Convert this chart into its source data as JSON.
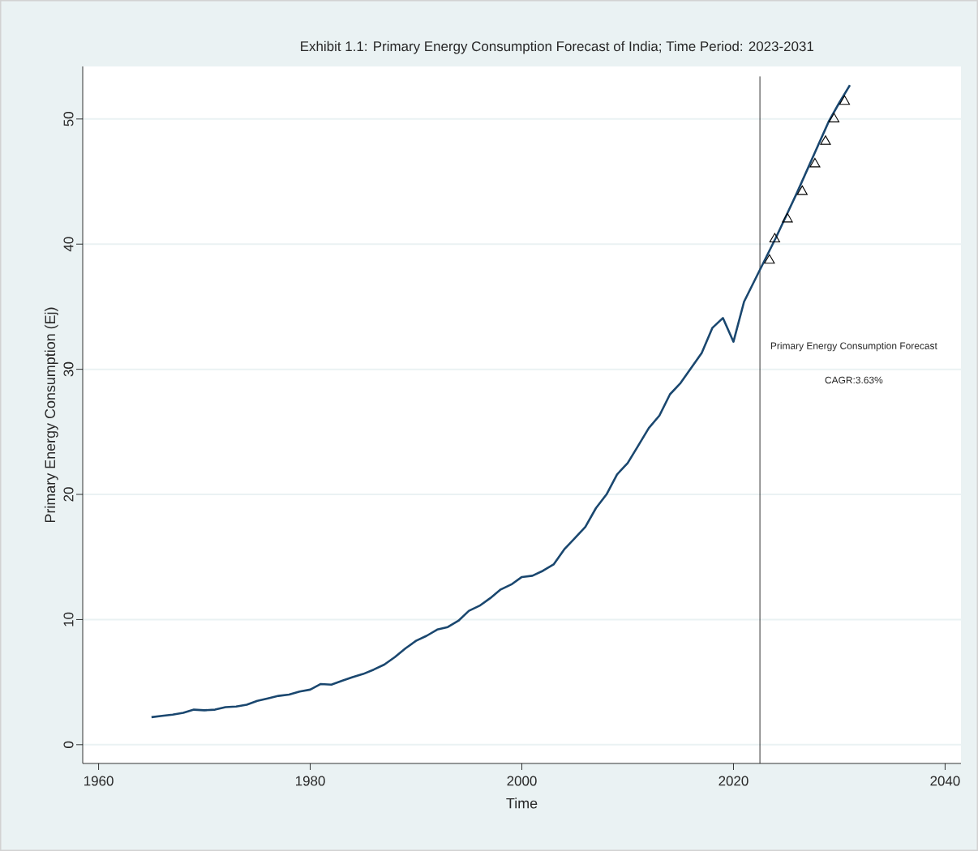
{
  "chart_data": {
    "type": "line",
    "title": "Exhibit 1.1: Primary Energy Consumption Forecast of India; Time Period: 2023-2031",
    "xlabel": "Time",
    "ylabel": "Primary Energy Consumption (Ej)",
    "xlim": [
      1958.5,
      2041.5
    ],
    "ylim": [
      -1.5,
      54.2
    ],
    "xticks": [
      1960,
      1980,
      2000,
      2020,
      2040
    ],
    "yticks": [
      0,
      10,
      20,
      30,
      40,
      50
    ],
    "grid": "y",
    "series": [
      {
        "color": "#1a476f",
        "marker": "none",
        "x": [
          1965,
          1966,
          1967,
          1968,
          1969,
          1970,
          1971,
          1972,
          1973,
          1974,
          1975,
          1976,
          1977,
          1978,
          1979,
          1980,
          1981,
          1982,
          1983,
          1984,
          1985,
          1986,
          1987,
          1988,
          1989,
          1990,
          1991,
          1992,
          1993,
          1994,
          1995,
          1996,
          1997,
          1998,
          1999,
          2000,
          2001,
          2002,
          2003,
          2004,
          2005,
          2006,
          2007,
          2008,
          2009,
          2010,
          2011,
          2012,
          2013,
          2014,
          2015,
          2016,
          2017,
          2018,
          2019,
          2020,
          2021,
          2022,
          2023,
          2024,
          2025,
          2026,
          2027,
          2028,
          2029,
          2030,
          2031
        ],
        "values": [
          2.2,
          2.3,
          2.4,
          2.55,
          2.8,
          2.75,
          2.8,
          3.0,
          3.05,
          3.2,
          3.5,
          3.7,
          3.9,
          4.0,
          4.25,
          4.4,
          4.85,
          4.8,
          5.1,
          5.4,
          5.65,
          6.0,
          6.4,
          7.0,
          7.7,
          8.3,
          8.7,
          9.2,
          9.4,
          9.9,
          10.7,
          11.1,
          11.7,
          12.4,
          12.8,
          13.4,
          13.5,
          13.9,
          14.4,
          15.6,
          16.5,
          17.4,
          18.9,
          20.0,
          21.6,
          22.5,
          23.9,
          25.3,
          26.3,
          28.0,
          28.9,
          30.1,
          31.3,
          33.3,
          34.1,
          32.2,
          35.4,
          37.1,
          38.8,
          40.5,
          42.3,
          44.1,
          46.0,
          47.9,
          49.8,
          51.3,
          52.7
        ]
      },
      {
        "type": "scatter",
        "color": "#000000",
        "marker": "triangle",
        "x": [
          2023.4,
          2023.9,
          2025.1,
          2026.5,
          2027.7,
          2028.7,
          2029.5,
          2030.5
        ],
        "values": [
          38.7,
          40.4,
          42.0,
          44.2,
          46.4,
          48.2,
          50.0,
          51.4
        ]
      }
    ],
    "ref_lines": [
      {
        "axis": "x",
        "value": 2022.5,
        "color": "#000000"
      }
    ],
    "annotations": [
      "Primary Energy Consumption Forecast",
      "CAGR:3.63%"
    ]
  }
}
